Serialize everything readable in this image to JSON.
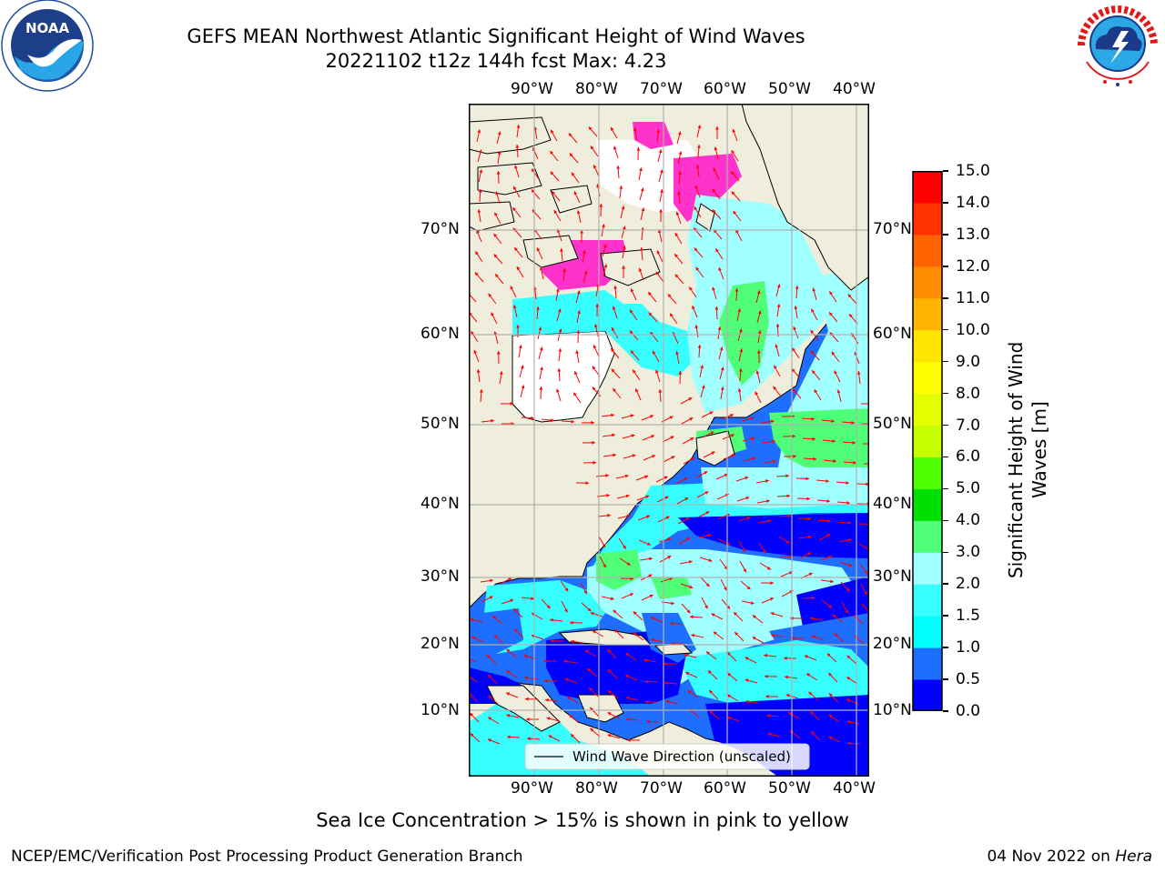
{
  "header": {
    "title_line1": "GEFS MEAN Northwest Atlantic Significant Height of Wind Waves",
    "title_line2": "20221102 t12z 144h fcst   Max: 4.23"
  },
  "logos": {
    "left": "noaa-logo",
    "right": "nws-logo"
  },
  "map": {
    "lon_labels": [
      "90°W",
      "80°W",
      "70°W",
      "60°W",
      "50°W",
      "40°W"
    ],
    "lat_labels": [
      "70°N",
      "60°N",
      "50°N",
      "40°N",
      "30°N",
      "20°N",
      "10°N"
    ],
    "legend_label": "Wind Wave Direction (unscaled)",
    "colors": {
      "land": "#efeedc",
      "ice_free_white": "#ffffff",
      "arrow": "#ff0000",
      "grid": "#b0b0b0"
    }
  },
  "colorbar": {
    "label": "Significant Height of Wind Waves [m]",
    "label_line1": "Significant Height of Wind",
    "label_line2": "Waves [m]",
    "ticks": [
      "0.0",
      "0.5",
      "1.0",
      "1.5",
      "2.0",
      "3.0",
      "4.0",
      "5.0",
      "6.0",
      "7.0",
      "8.0",
      "9.0",
      "10.0",
      "11.0",
      "12.0",
      "13.0",
      "14.0",
      "15.0"
    ],
    "colors": [
      "#0000ff",
      "#1e6eff",
      "#00ffff",
      "#38ffff",
      "#a0ffff",
      "#50ff78",
      "#00e000",
      "#50ff00",
      "#c8ff00",
      "#e6ff00",
      "#ffff00",
      "#ffe600",
      "#ffb400",
      "#ff8c00",
      "#ff6400",
      "#ff3200",
      "#ff0000"
    ]
  },
  "caption": "Sea Ice Concentration > 15% is shown in pink to yellow",
  "footer": {
    "left": "NCEP/EMC/Verification Post Processing Product Generation Branch",
    "right_date": "04 Nov 2022 on ",
    "right_machine": "Hera"
  }
}
